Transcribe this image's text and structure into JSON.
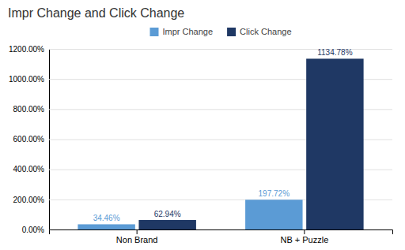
{
  "chart_data": {
    "type": "bar",
    "title": "Impr Change and Click Change",
    "categories": [
      "Non Brand",
      "NB + Puzzle"
    ],
    "series": [
      {
        "name": "Impr Change",
        "color": "#5b9bd5",
        "values": [
          34.46,
          197.72
        ],
        "value_labels": [
          "34.46%",
          "197.72%"
        ]
      },
      {
        "name": "Click Change",
        "color": "#1f3864",
        "values": [
          62.94,
          1134.78
        ],
        "value_labels": [
          "62.94%",
          "1134.78%"
        ]
      }
    ],
    "ylim": [
      0,
      1200
    ],
    "yticks": [
      {
        "value": 0,
        "label": "0.00%"
      },
      {
        "value": 200,
        "label": "200.00%"
      },
      {
        "value": 400,
        "label": "400.00%"
      },
      {
        "value": 600,
        "label": "600.00%"
      },
      {
        "value": 800,
        "label": "800.00%"
      },
      {
        "value": 1000,
        "label": "1000.00%"
      },
      {
        "value": 1200,
        "label": "1200.00%"
      }
    ],
    "grid": true,
    "legend": "top",
    "data_labels": true
  }
}
